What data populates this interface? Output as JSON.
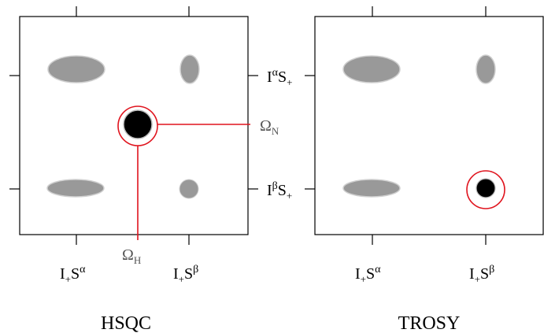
{
  "colors": {
    "peak_gray": "#999999",
    "peak_black": "#000000",
    "highlight_red": "#e0141e",
    "frame": "#000000",
    "omega_label": "#555555"
  },
  "panels": {
    "hsqc": {
      "title": "HSQC"
    },
    "trosy": {
      "title": "TROSY"
    }
  },
  "labels": {
    "x_left": {
      "main": "I",
      "sub": "+",
      "tail": "S",
      "sup": "α"
    },
    "x_right": {
      "main": "I",
      "sub": "+",
      "tail": "S",
      "sup": "β"
    },
    "y_top": {
      "main": "I",
      "sup": "α",
      "tail": "S",
      "sub": "+"
    },
    "y_bottom": {
      "main": "I",
      "sup": "β",
      "tail": "S",
      "sub": "+"
    },
    "omega_n": {
      "main": "Ω",
      "sub": "N"
    },
    "omega_h": {
      "main": "Ω",
      "sub": "H"
    }
  }
}
